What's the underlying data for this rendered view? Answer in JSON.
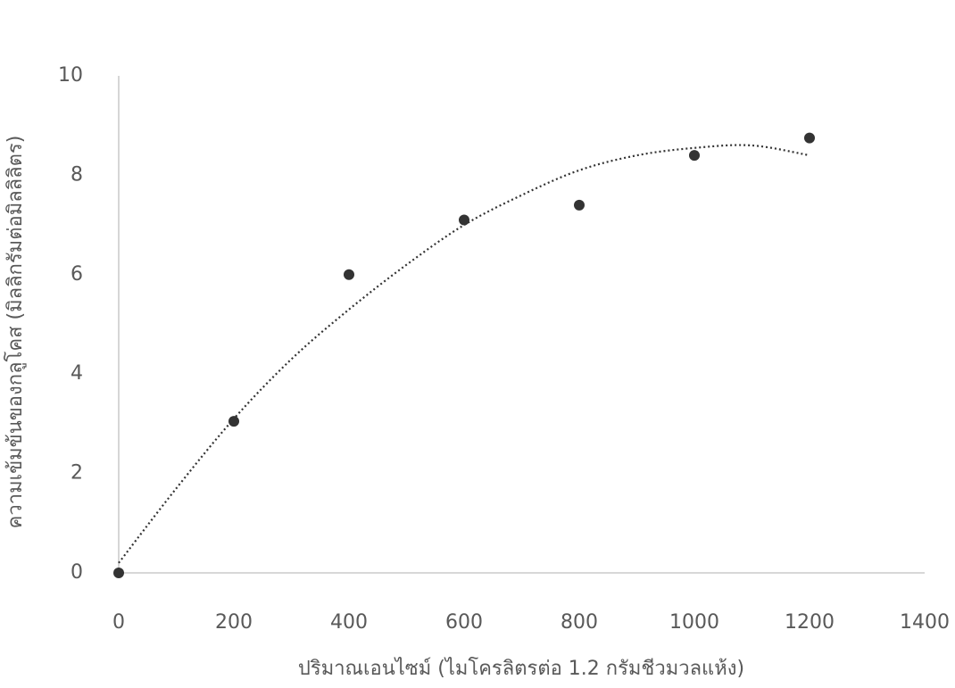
{
  "chart_data": {
    "type": "scatter",
    "x_label": "ปริมาณเอนไซม์ (ไมโครลิตรต่อ 1.2 กรัมชีวมวลแห้ง)",
    "y_label": "ความเข้มข้นของกลูโคส (มิลลิกรัมต่อมิลลิลิตร)",
    "x": [
      0,
      200,
      400,
      600,
      800,
      1000,
      1200
    ],
    "values": [
      0,
      3.05,
      6.0,
      7.1,
      7.4,
      8.4,
      8.75
    ],
    "color": "#333333",
    "trendline": {
      "x": [
        0,
        100,
        200,
        300,
        400,
        500,
        600,
        700,
        800,
        900,
        1000,
        1100,
        1200
      ],
      "values": [
        0.2,
        1.7,
        3.1,
        4.3,
        5.3,
        6.2,
        7.0,
        7.6,
        8.1,
        8.4,
        8.55,
        8.6,
        8.4
      ],
      "color": "#333333"
    },
    "xlim": [
      0,
      1400
    ],
    "xticks": [
      0,
      200,
      400,
      600,
      800,
      1000,
      1200,
      1400
    ],
    "ylim": [
      0,
      10
    ],
    "yticks": [
      0,
      2,
      4,
      6,
      8,
      10
    ],
    "grid": false
  }
}
